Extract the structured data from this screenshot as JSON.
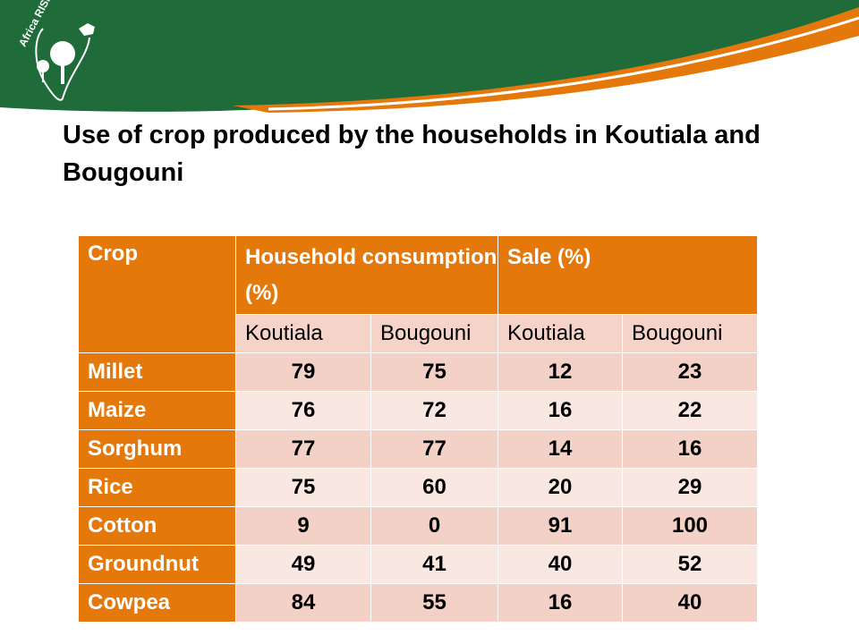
{
  "brand": {
    "logo_text": "Africa RISING"
  },
  "title": "Use of crop produced by the households in Koutiala and Bougouni",
  "table": {
    "crop_header": "Crop",
    "household_header": "Household consumption (%)",
    "sale_header": "Sale (%)",
    "subheaders": [
      "Koutiala",
      "Bougouni",
      "Koutiala",
      "Bougouni"
    ],
    "rows": [
      {
        "crop": "Millet",
        "values": [
          "79",
          "75",
          "12",
          "23"
        ]
      },
      {
        "crop": "Maize",
        "values": [
          "76",
          "72",
          "16",
          "22"
        ]
      },
      {
        "crop": "Sorghum",
        "values": [
          "77",
          "77",
          "14",
          "16"
        ]
      },
      {
        "crop": "Rice",
        "values": [
          "75",
          "60",
          "20",
          "29"
        ]
      },
      {
        "crop": "Cotton",
        "values": [
          "9",
          "0",
          "91",
          "100"
        ]
      },
      {
        "crop": "Groundnut",
        "values": [
          "49",
          "41",
          "40",
          "52"
        ]
      },
      {
        "crop": "Cowpea",
        "values": [
          "84",
          "55",
          "16",
          "40"
        ]
      }
    ]
  },
  "colors": {
    "header_green": "#1f6b3a",
    "accent_orange": "#e5780b",
    "row_dark": "#f3d1c6",
    "row_light": "#f9e7e2"
  }
}
